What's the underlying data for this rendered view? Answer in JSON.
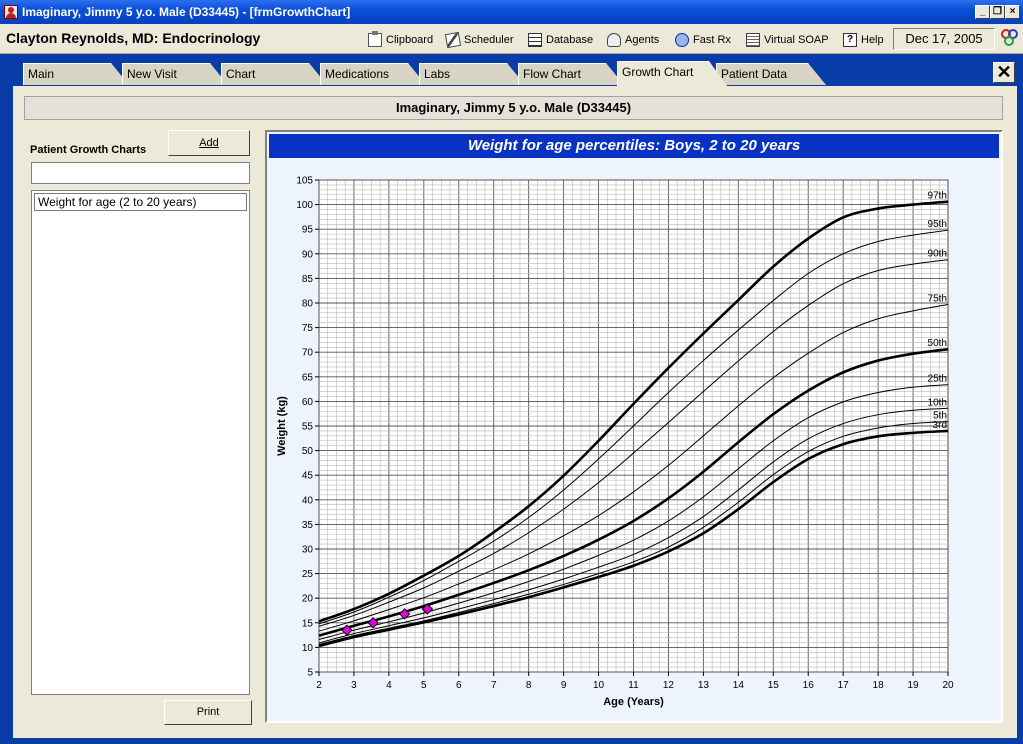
{
  "window": {
    "title": "Imaginary, Jimmy 5 y.o. Male (D33445) - [frmGrowthChart]",
    "min": "_",
    "restore": "❐",
    "close": "×"
  },
  "toolbar": {
    "doctor": "Clayton Reynolds, MD: Endocrinology",
    "items": [
      {
        "label": "Clipboard",
        "icon": "clipboard-icon"
      },
      {
        "label": "Scheduler",
        "icon": "scheduler-icon"
      },
      {
        "label": "Database",
        "icon": "database-icon"
      },
      {
        "label": "Agents",
        "icon": "agents-icon"
      },
      {
        "label": "Fast Rx",
        "icon": "fast-rx-icon"
      },
      {
        "label": "Virtual SOAP",
        "icon": "virtual-soap-icon"
      },
      {
        "label": "Help",
        "icon": "help-icon"
      }
    ],
    "date": "Dec 17, 2005"
  },
  "tabs": [
    {
      "label": "Main"
    },
    {
      "label": "New Visit"
    },
    {
      "label": "Chart"
    },
    {
      "label": "Medications"
    },
    {
      "label": "Labs"
    },
    {
      "label": "Flow Chart"
    },
    {
      "label": "Growth Chart",
      "active": true
    },
    {
      "label": "Patient Data"
    }
  ],
  "close_tab": "✕",
  "patient_header": "Imaginary, Jimmy 5 y.o. Male (D33445)",
  "left_panel": {
    "label": "Patient Growth Charts",
    "add_button": "Add",
    "filter_value": "",
    "charts": [
      "Weight for age (2 to 20 years)"
    ],
    "print_button": "Print"
  },
  "chart_data": {
    "type": "line",
    "title": "Weight for age percentiles: Boys, 2 to 20 years",
    "xlabel": "Age (Years)",
    "ylabel": "Weight (kg)",
    "xlim": [
      2,
      20
    ],
    "ylim": [
      5,
      105
    ],
    "x_ticks": [
      2,
      3,
      4,
      5,
      6,
      7,
      8,
      9,
      10,
      11,
      12,
      13,
      14,
      15,
      16,
      17,
      18,
      19,
      20
    ],
    "y_ticks": [
      5,
      10,
      15,
      20,
      25,
      30,
      35,
      40,
      45,
      50,
      55,
      60,
      65,
      70,
      75,
      80,
      85,
      90,
      95,
      100,
      105
    ],
    "grid": true,
    "x": [
      2,
      3,
      4,
      5,
      6,
      7,
      8,
      9,
      10,
      11,
      12,
      13,
      14,
      15,
      16,
      17,
      18,
      19,
      20
    ],
    "series": [
      {
        "name": "3rd",
        "bold": true,
        "values": [
          10.3,
          12.1,
          13.6,
          15.1,
          16.7,
          18.4,
          20.2,
          22.2,
          24.3,
          26.6,
          29.5,
          33.2,
          38.1,
          43.6,
          48.3,
          51.3,
          52.9,
          53.6,
          54.0
        ]
      },
      {
        "name": "5th",
        "bold": false,
        "values": [
          10.6,
          12.4,
          13.9,
          15.4,
          17.1,
          18.9,
          20.8,
          22.8,
          25.0,
          27.4,
          30.4,
          34.4,
          39.5,
          45.1,
          49.8,
          52.9,
          54.6,
          55.5,
          55.9
        ]
      },
      {
        "name": "10th",
        "bold": false,
        "values": [
          10.9,
          12.8,
          14.4,
          16.0,
          17.8,
          19.7,
          21.7,
          23.9,
          26.3,
          28.9,
          32.3,
          36.6,
          42.0,
          47.7,
          52.4,
          55.5,
          57.3,
          58.2,
          58.6
        ]
      },
      {
        "name": "25th",
        "bold": false,
        "values": [
          11.6,
          13.5,
          15.2,
          17.0,
          19.0,
          21.1,
          23.4,
          25.9,
          28.7,
          31.8,
          35.7,
          40.6,
          46.3,
          52.0,
          56.7,
          59.9,
          61.8,
          62.9,
          63.4
        ]
      },
      {
        "name": "50th",
        "bold": true,
        "values": [
          12.4,
          14.4,
          16.3,
          18.4,
          20.7,
          23.1,
          25.7,
          28.6,
          31.9,
          35.7,
          40.3,
          45.7,
          51.7,
          57.4,
          62.2,
          65.9,
          68.3,
          69.7,
          70.6
        ]
      },
      {
        "name": "75th",
        "bold": false,
        "values": [
          13.3,
          15.4,
          17.7,
          20.1,
          22.9,
          25.8,
          29.0,
          32.7,
          36.8,
          41.6,
          47.0,
          53.0,
          59.1,
          64.8,
          69.8,
          74.0,
          76.8,
          78.4,
          79.7
        ]
      },
      {
        "name": "90th",
        "bold": false,
        "values": [
          14.3,
          16.5,
          19.2,
          22.1,
          25.5,
          29.1,
          33.3,
          38.1,
          43.5,
          49.5,
          55.7,
          62.0,
          68.2,
          74.2,
          79.5,
          83.9,
          86.6,
          87.9,
          88.8
        ]
      },
      {
        "name": "95th",
        "bold": false,
        "values": [
          14.8,
          17.2,
          20.2,
          23.6,
          27.5,
          31.6,
          36.4,
          42.0,
          48.3,
          55.0,
          61.8,
          68.3,
          74.5,
          80.5,
          86.0,
          90.0,
          92.5,
          93.8,
          94.8
        ]
      },
      {
        "name": "97th",
        "bold": true,
        "values": [
          15.3,
          17.8,
          20.9,
          24.6,
          28.6,
          33.4,
          38.7,
          44.9,
          52.0,
          59.5,
          66.8,
          73.8,
          80.6,
          87.4,
          93.1,
          97.4,
          99.2,
          100.0,
          100.6
        ]
      }
    ],
    "patient_points": [
      {
        "x": 2.8,
        "y": 13.5
      },
      {
        "x": 3.55,
        "y": 15.0
      },
      {
        "x": 4.45,
        "y": 16.8
      },
      {
        "x": 5.1,
        "y": 17.8
      }
    ],
    "point_color": "#e000e0",
    "line_color": "#000000",
    "title_bg": "#0a32c2"
  }
}
